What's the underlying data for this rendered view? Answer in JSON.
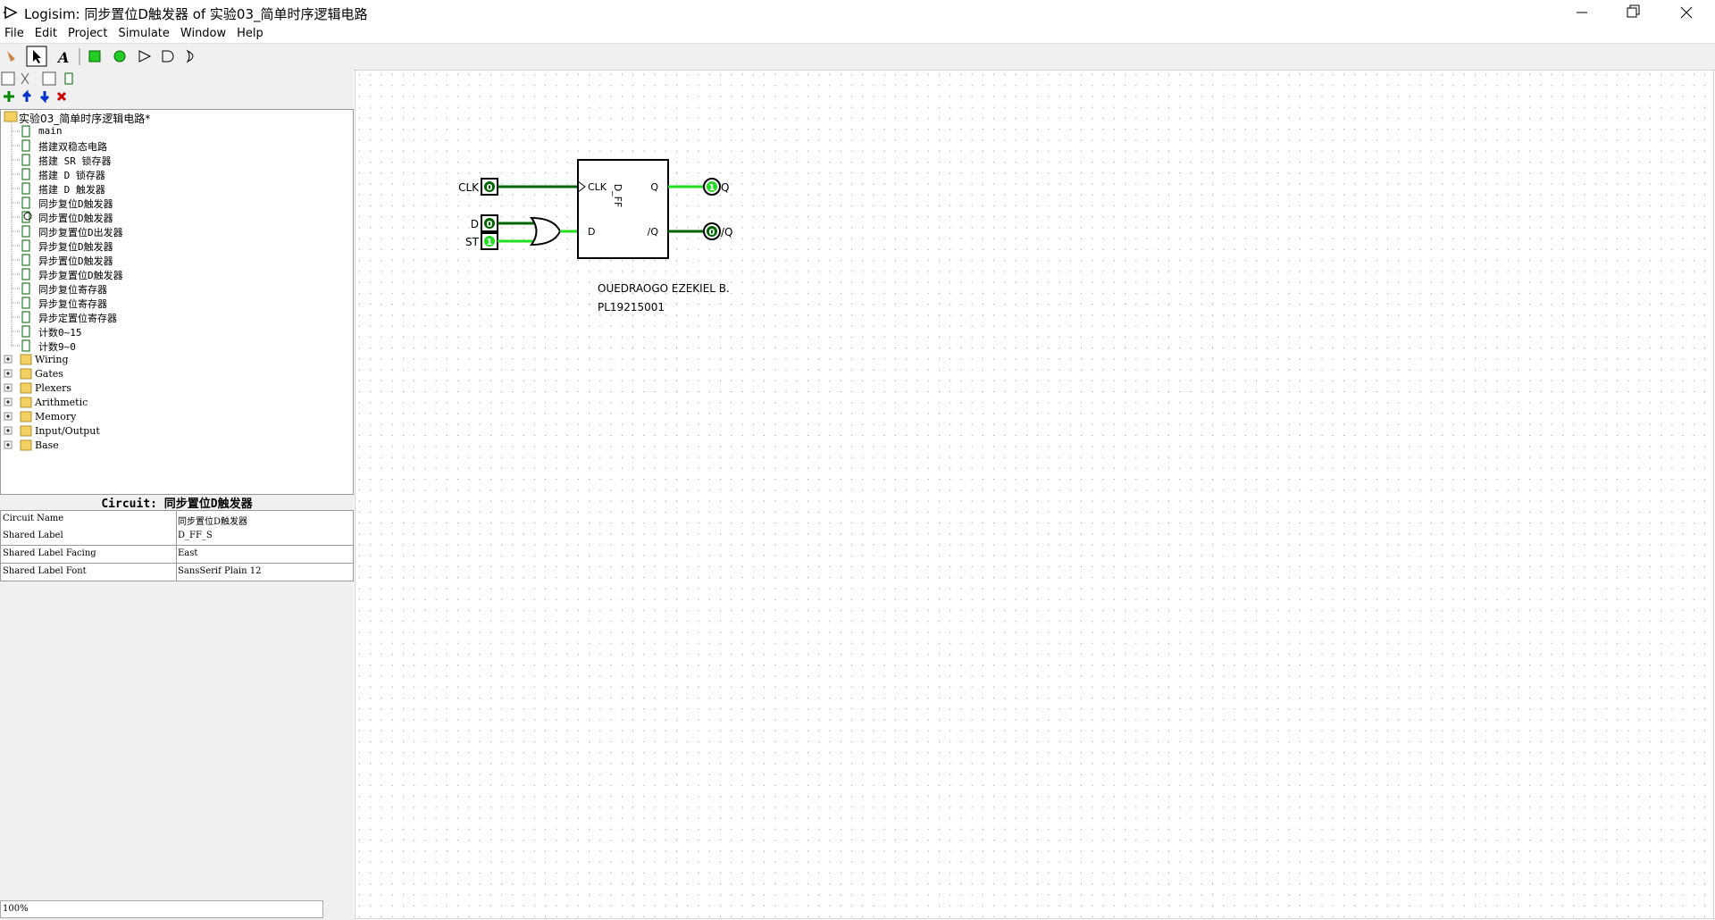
{
  "window": {
    "title": "Logisim: 同步置位D触发器 of 实验03_简单时序逻辑电路"
  },
  "menu": [
    "File",
    "Edit",
    "Project",
    "Simulate",
    "Window",
    "Help"
  ],
  "tree": {
    "project": "实验03_简单时序逻辑电路*",
    "circuits": [
      "main",
      "搭建双稳态电路",
      "搭建 SR 锁存器",
      "搭建 D 锁存器",
      "搭建 D 触发器",
      "同步复位D触发器",
      "同步置位D触发器",
      "同步复置位D出发器",
      "异步复位D触发器",
      "异步置位D触发器",
      "异步复置位D触发器",
      "同步复位寄存器",
      "异步复位寄存器",
      "异步定置位寄存器",
      "计数0~15",
      "计数9~0"
    ],
    "libraries": [
      "Wiring",
      "Gates",
      "Plexers",
      "Arithmetic",
      "Memory",
      "Input/Output",
      "Base"
    ]
  },
  "properties": {
    "title": "Circuit: 同步置位D触发器",
    "rows": [
      [
        "Circuit Name",
        "同步置位D触发器"
      ],
      [
        "Shared Label",
        "D_FF_S"
      ],
      [
        "Shared Label Facing",
        "East"
      ],
      [
        "Shared Label Font",
        "SansSerif Plain 12"
      ]
    ]
  },
  "zoom": "100%",
  "circuit": {
    "inputs": [
      {
        "label": "CLK",
        "state": "0"
      },
      {
        "label": "D",
        "state": "0"
      },
      {
        "label": "ST",
        "state": "1"
      }
    ],
    "outputs": [
      {
        "label": "Q",
        "state": "1"
      },
      {
        "label": "/Q",
        "state": "0"
      }
    ],
    "component": {
      "name": "D_FF",
      "ports": [
        "CLK",
        "D",
        "Q",
        "/Q"
      ]
    },
    "notes": [
      "OUEDRAOGO EZEKIEL B.",
      "PL19215001"
    ]
  }
}
